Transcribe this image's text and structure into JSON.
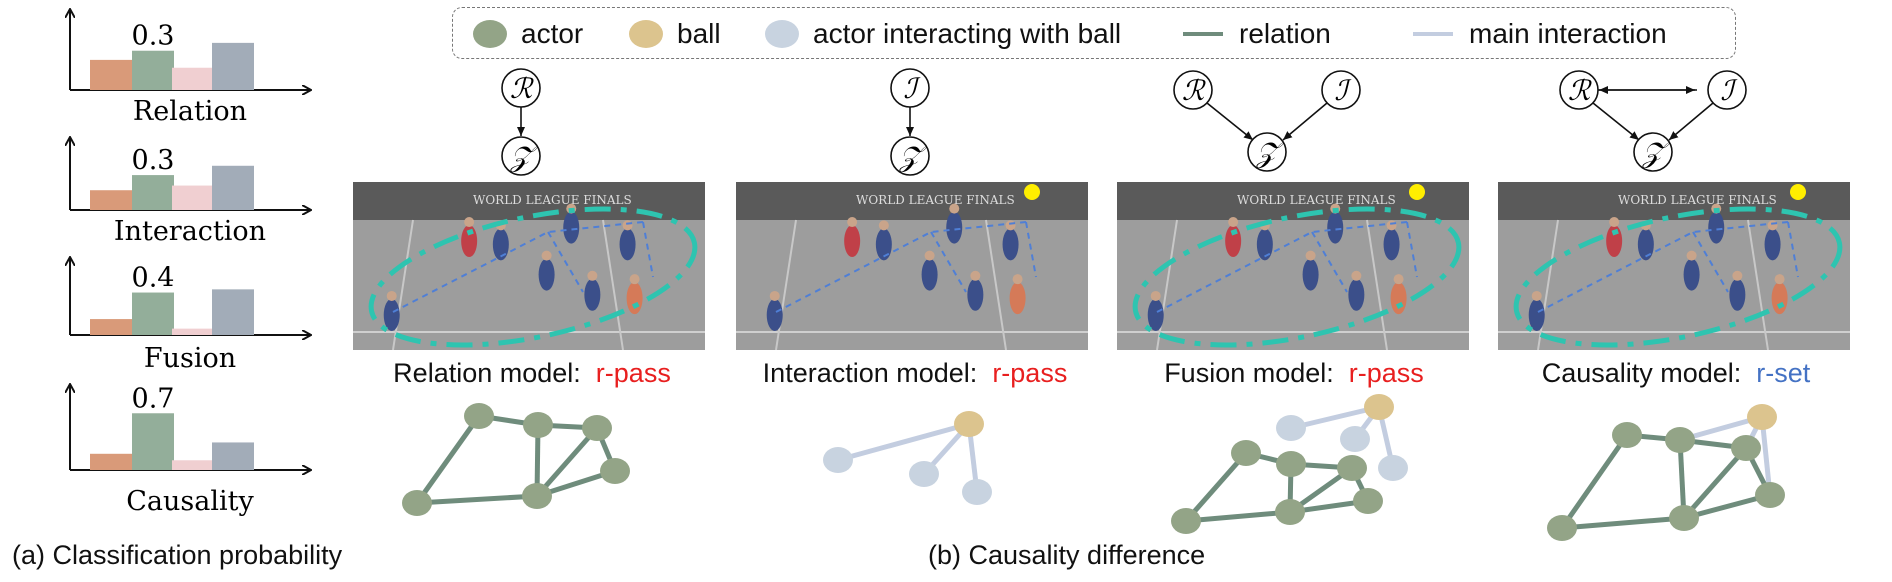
{
  "chart_data": [
    {
      "type": "bar",
      "title": "Relation",
      "categories": [
        "",
        "",
        "",
        ""
      ],
      "values": [
        0.23,
        0.3,
        0.17,
        0.36
      ],
      "data_labels": [
        "",
        "0.3",
        "",
        ""
      ],
      "colors": [
        "#d99a79",
        "#93ae9a",
        "#f0cfd1",
        "#a2acb8"
      ],
      "ylim": [
        0,
        0.55
      ]
    },
    {
      "type": "bar",
      "title": "Interaction",
      "categories": [
        "",
        "",
        "",
        ""
      ],
      "values": [
        0.17,
        0.3,
        0.21,
        0.38
      ],
      "data_labels": [
        "",
        "0.3",
        "",
        ""
      ],
      "colors": [
        "#d99a79",
        "#93ae9a",
        "#f0cfd1",
        "#a2acb8"
      ],
      "ylim": [
        0,
        0.55
      ]
    },
    {
      "type": "bar",
      "title": "Fusion",
      "categories": [
        "",
        "",
        "",
        ""
      ],
      "values": [
        0.15,
        0.4,
        0.06,
        0.43
      ],
      "data_labels": [
        "",
        "0.4",
        "",
        ""
      ],
      "colors": [
        "#d99a79",
        "#93ae9a",
        "#f0cfd1",
        "#a2acb8"
      ],
      "ylim": [
        0,
        0.65
      ]
    },
    {
      "type": "bar",
      "title": "Causality",
      "categories": [
        "",
        "",
        "",
        ""
      ],
      "values": [
        0.2,
        0.7,
        0.12,
        0.34
      ],
      "data_labels": [
        "",
        "0.7",
        "",
        ""
      ],
      "colors": [
        "#d99a79",
        "#93ae9a",
        "#f0cfd1",
        "#a2acb8"
      ],
      "ylim": [
        0,
        0.95
      ]
    }
  ],
  "captions": {
    "left": "(a) Classification probability",
    "right": "(b) Causality difference"
  },
  "legend": {
    "items": [
      {
        "label": "actor",
        "kind": "dot",
        "color": "#93a487"
      },
      {
        "label": "ball",
        "kind": "dot",
        "color": "#dcc48e"
      },
      {
        "label": "actor interacting with ball",
        "kind": "dot",
        "color": "#c8d3e0"
      },
      {
        "label": "relation",
        "kind": "line",
        "color": "#6f8c7c"
      },
      {
        "label": "main interaction",
        "kind": "line",
        "color": "#c3cde0"
      }
    ]
  },
  "causal_graphs": [
    {
      "nodes": [
        "R",
        "Z"
      ],
      "edges": [
        [
          "R",
          "Z"
        ]
      ]
    },
    {
      "nodes": [
        "I",
        "Z"
      ],
      "edges": [
        [
          "I",
          "Z"
        ]
      ]
    },
    {
      "nodes": [
        "R",
        "I",
        "Z"
      ],
      "edges": [
        [
          "R",
          "Z"
        ],
        [
          "I",
          "Z"
        ]
      ]
    },
    {
      "nodes": [
        "R",
        "I",
        "Z"
      ],
      "edges": [
        [
          "R",
          "Z"
        ],
        [
          "I",
          "Z"
        ],
        [
          "R",
          "I"
        ],
        [
          "I",
          "R"
        ]
      ]
    }
  ],
  "models": [
    {
      "prefix": "Relation model:",
      "prediction": "r-pass",
      "pred_color": "#e81f1f"
    },
    {
      "prefix": "Interaction model:",
      "prediction": "r-pass",
      "pred_color": "#e81f1f"
    },
    {
      "prefix": "Fusion model:",
      "prediction": "r-pass",
      "pred_color": "#e81f1f"
    },
    {
      "prefix": "Causality model:",
      "prediction": "r-set",
      "pred_color": "#4472c4"
    }
  ],
  "colors": {
    "actor": "#93a487",
    "ball": "#dcc48e",
    "interacting_actor": "#c8d3e0",
    "relation_edge": "#6f8c7c",
    "interaction_edge": "#c3cde0",
    "highlight_ellipse": "#2ec4b0",
    "pass_line": "#4f7fd6",
    "ball_marker": "#ffee00"
  }
}
